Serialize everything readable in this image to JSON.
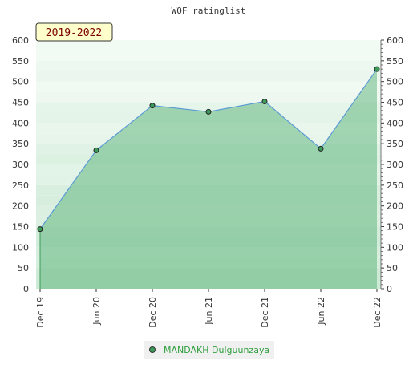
{
  "chart_data": {
    "type": "area",
    "title": "WOF ratinglist",
    "period_label": "2019-2022",
    "x_ticks": [
      "Dec 19",
      "Jun 20",
      "Dec 20",
      "Jun 21",
      "Dec 21",
      "Jun 22",
      "Dec 22"
    ],
    "y_ticks": [
      0,
      50,
      100,
      150,
      200,
      250,
      300,
      350,
      400,
      450,
      500,
      550,
      600
    ],
    "ylim": [
      0,
      600
    ],
    "grid": true,
    "legend_position": "bottom",
    "series": [
      {
        "name": "MANDAKH Dulguunzaya",
        "x": [
          "Dec 19",
          "Jun 20",
          "Dec 20",
          "Jun 21",
          "Dec 21",
          "Jun 22",
          "Dec 22"
        ],
        "values": [
          144,
          334,
          442,
          427,
          452,
          338,
          530
        ]
      }
    ],
    "colors": {
      "line": "#5b9bd5",
      "area": "#4aaa6a",
      "marker": "#3c9a5a",
      "band_light": "#f2faf4",
      "band_dark": "#a8dcb8"
    }
  }
}
